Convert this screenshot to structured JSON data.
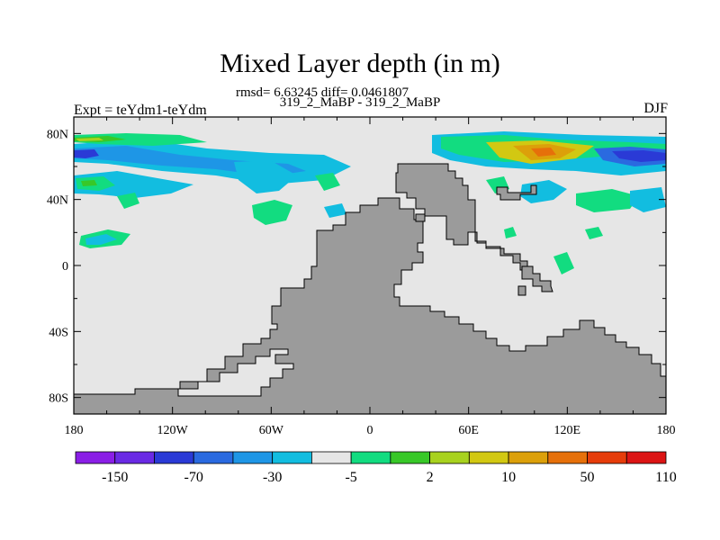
{
  "title": "Mixed Layer depth (in m)",
  "subtitle_stats": "rmsd= 6.63245 diff= 0.0461807",
  "subtitle_runs": "319_2_MaBP - 319_2_MaBP",
  "left_label": "Expt = teYdm1-teYdm",
  "right_label": "DJF",
  "colors": {
    "land": "#9b9b9b",
    "no_change": "#e6e6e6"
  },
  "map": {
    "lon_ticks": [
      "180",
      "120W",
      "60W",
      "0",
      "60E",
      "120E",
      "180"
    ],
    "lat_ticks": [
      "80N",
      "40N",
      "0",
      "40S",
      "80S"
    ]
  },
  "colorbar": {
    "labels": [
      "-150",
      "-70",
      "-30",
      "-5",
      "2",
      "10",
      "50",
      "110"
    ],
    "colors": [
      "#8a1ee6",
      "#6a2ae4",
      "#2a3ad6",
      "#2a6ae0",
      "#1e96e6",
      "#12bde0",
      "#e6e6e6",
      "#12dc80",
      "#38c828",
      "#a8d21e",
      "#d2c812",
      "#dca00a",
      "#e6700a",
      "#e63c0a",
      "#dc1414"
    ]
  }
}
